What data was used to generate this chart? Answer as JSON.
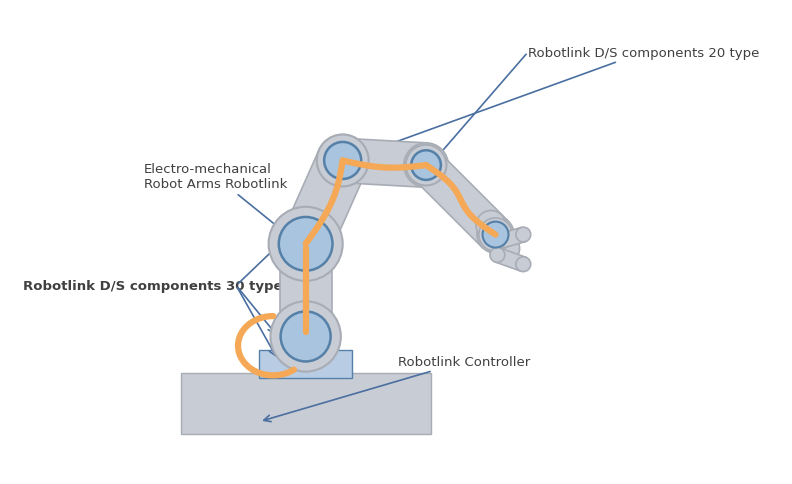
{
  "bg_color": "#ffffff",
  "arm_gray": "#c8ccd4",
  "arm_edge": "#a8acb5",
  "joint_fill": "#a8c4de",
  "joint_stroke": "#5580a8",
  "joint_inner_fill": "#c0d8ee",
  "cable_color": "#f5a855",
  "arrow_color": "#4a6fa0",
  "text_color": "#404040",
  "pedestal_fill": "#b8cce4",
  "pedestal_edge": "#5580a8",
  "base_fill": "#c8ccd4",
  "base_edge": "#a8acb5",
  "figsize": [
    7.92,
    4.85
  ],
  "dpi": 100,
  "labels": {
    "top_right": "Robotlink D/S components 20 type",
    "elec_line1": "Electro-mechanical",
    "elec_line2": "Robot Arms Robotlink",
    "bottom_left": "Robotlink D/S components 30 type",
    "controller": "Robotlink Controller"
  }
}
